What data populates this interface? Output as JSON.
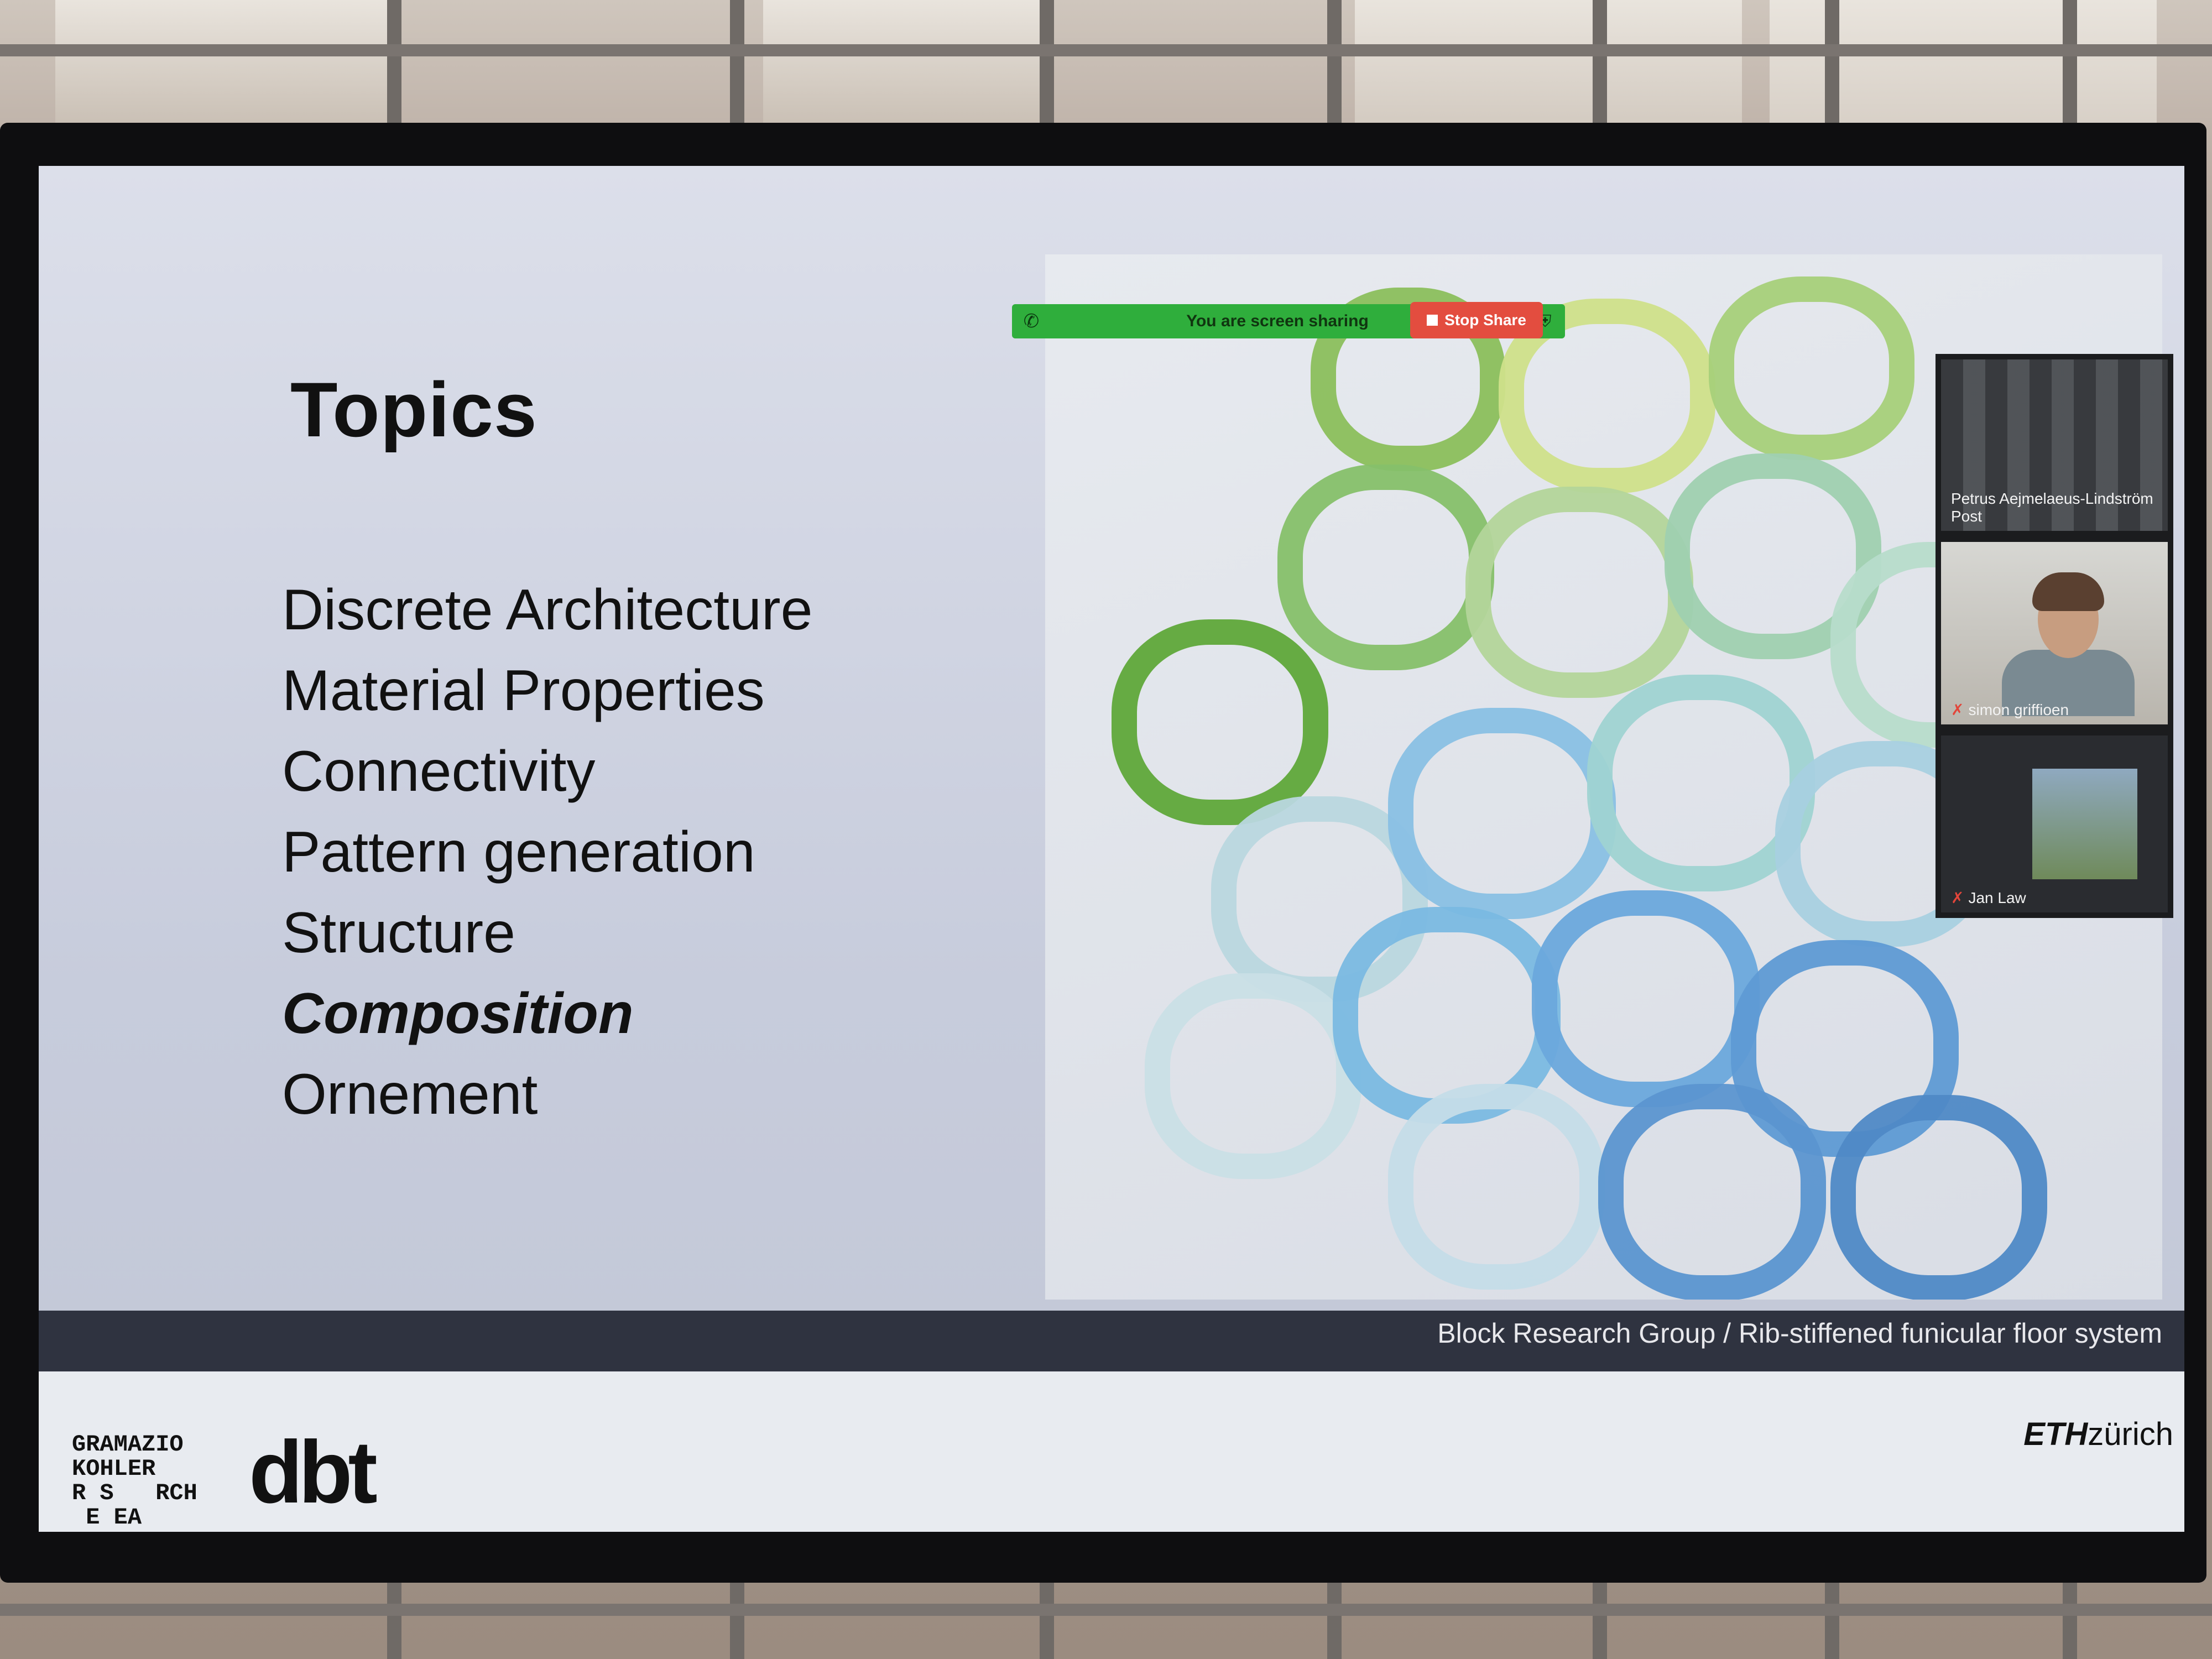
{
  "slide": {
    "title": "Topics",
    "topics": [
      {
        "label": "Discrete Architecture",
        "active": false
      },
      {
        "label": "Material Properties",
        "active": false
      },
      {
        "label": "Connectivity",
        "active": false
      },
      {
        "label": "Pattern generation",
        "active": false
      },
      {
        "label": "Structure",
        "active": false
      },
      {
        "label": "Composition",
        "active": true
      },
      {
        "label": "Ornement",
        "active": false
      }
    ],
    "image_caption": "Block Research Group / Rib-stiffened funicular floor system",
    "footer": {
      "gkr_logo_text": "GRAMAZIO\nKOHLER\nR S   RCH\n E EA",
      "dbt_logo": "dbt",
      "eth_bold": "ETH",
      "eth_rest": "zürich"
    }
  },
  "zoom": {
    "share_banner": "You are screen sharing",
    "stop_share_label": "Stop Share",
    "participants": [
      {
        "name": "Petrus Aejmelaeus-Lindström Post"
      },
      {
        "name": "simon griffioen",
        "muted": true
      },
      {
        "name": "Jan Law",
        "muted": true
      }
    ]
  },
  "colors": {
    "share_green": "#2fae3c",
    "stop_red": "#e34d3f"
  }
}
